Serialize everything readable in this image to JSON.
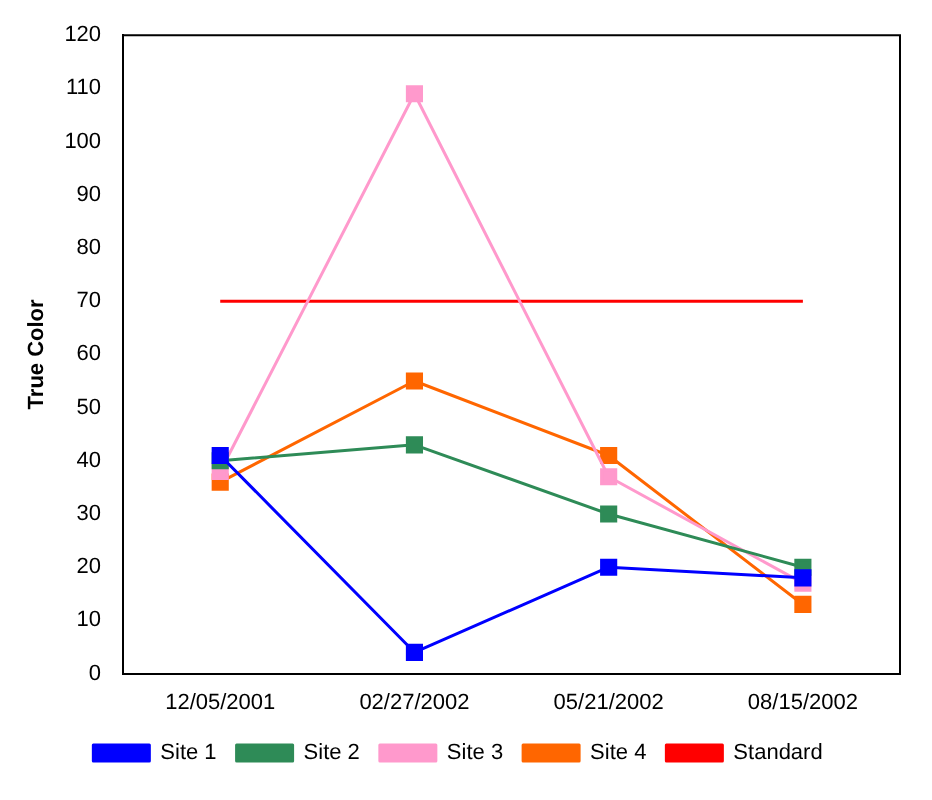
{
  "chart_data": {
    "type": "line",
    "ylabel": "True Color",
    "categories": [
      "12/05/2001",
      "02/27/2002",
      "05/21/2002",
      "08/15/2002"
    ],
    "series": [
      {
        "name": "Site 1",
        "color": "#0000ff",
        "values": [
          41,
          4,
          20,
          18
        ]
      },
      {
        "name": "Site 2",
        "color": "#2e8b57",
        "values": [
          40,
          43,
          30,
          20
        ]
      },
      {
        "name": "Site 3",
        "color": "#ff99cc",
        "values": [
          38,
          109,
          37,
          17
        ]
      },
      {
        "name": "Site 4",
        "color": "#ff6600",
        "values": [
          36,
          55,
          41,
          13
        ]
      },
      {
        "name": "Standard",
        "color": "#ff0000",
        "values": [
          70,
          70,
          70,
          70
        ],
        "marker": "none"
      }
    ],
    "ylim": [
      0,
      120
    ],
    "yticks": [
      0,
      10,
      20,
      30,
      40,
      50,
      60,
      70,
      80,
      90,
      100,
      110,
      120
    ],
    "marker": "square",
    "line_style": "solid",
    "legend": "bottom",
    "grid": false
  }
}
